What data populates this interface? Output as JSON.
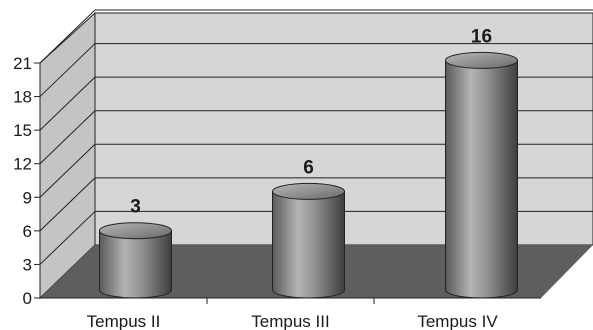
{
  "chart_data": {
    "type": "bar",
    "style": "3d-cylinder",
    "categories": [
      "Tempus II",
      "Tempus III",
      "Tempus IV"
    ],
    "values": [
      3,
      6,
      16
    ],
    "data_labels": [
      "3",
      "6",
      "16"
    ],
    "title": "",
    "xlabel": "",
    "ylabel": "",
    "ylim": [
      0,
      21
    ],
    "y_ticks": [
      0,
      3,
      6,
      9,
      12,
      15,
      18,
      21
    ],
    "grid": true,
    "legend": "none",
    "colors": {
      "back_wall": "#d6d6d6",
      "side_wall": "#c4c4c4",
      "floor": "#5e5e5e",
      "gridline": "#222222",
      "bar": "#8a8a8a"
    }
  }
}
